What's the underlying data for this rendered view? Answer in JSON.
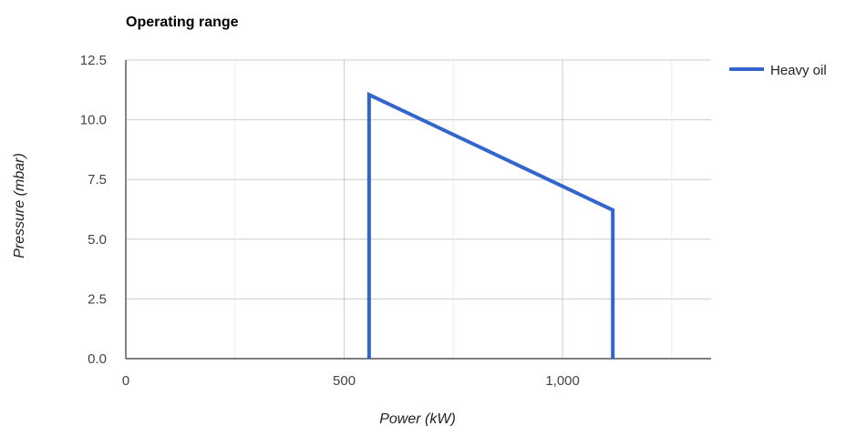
{
  "chart_data": {
    "type": "line",
    "title": "Operating range",
    "xlabel": "Power (kW)",
    "ylabel": "Pressure (mbar)",
    "xlim": [
      0,
      1340
    ],
    "ylim": [
      0,
      12.5
    ],
    "x_ticks": [
      0,
      500,
      1000
    ],
    "x_tick_labels": [
      "0",
      "500",
      "1,000"
    ],
    "x_gridlines": [
      0,
      250,
      500,
      750,
      1000,
      1250
    ],
    "y_ticks": [
      0,
      2.5,
      5,
      7.5,
      10,
      12.5
    ],
    "y_tick_labels": [
      "0.0",
      "2.5",
      "5.0",
      "7.5",
      "10.0",
      "12.5"
    ],
    "grid": true,
    "legend_position": "right",
    "series": [
      {
        "name": "Heavy oil",
        "color": "#3366cc",
        "x": [
          557,
          557,
          1115,
          1115
        ],
        "y": [
          0,
          11.05,
          6.22,
          0
        ]
      }
    ]
  }
}
